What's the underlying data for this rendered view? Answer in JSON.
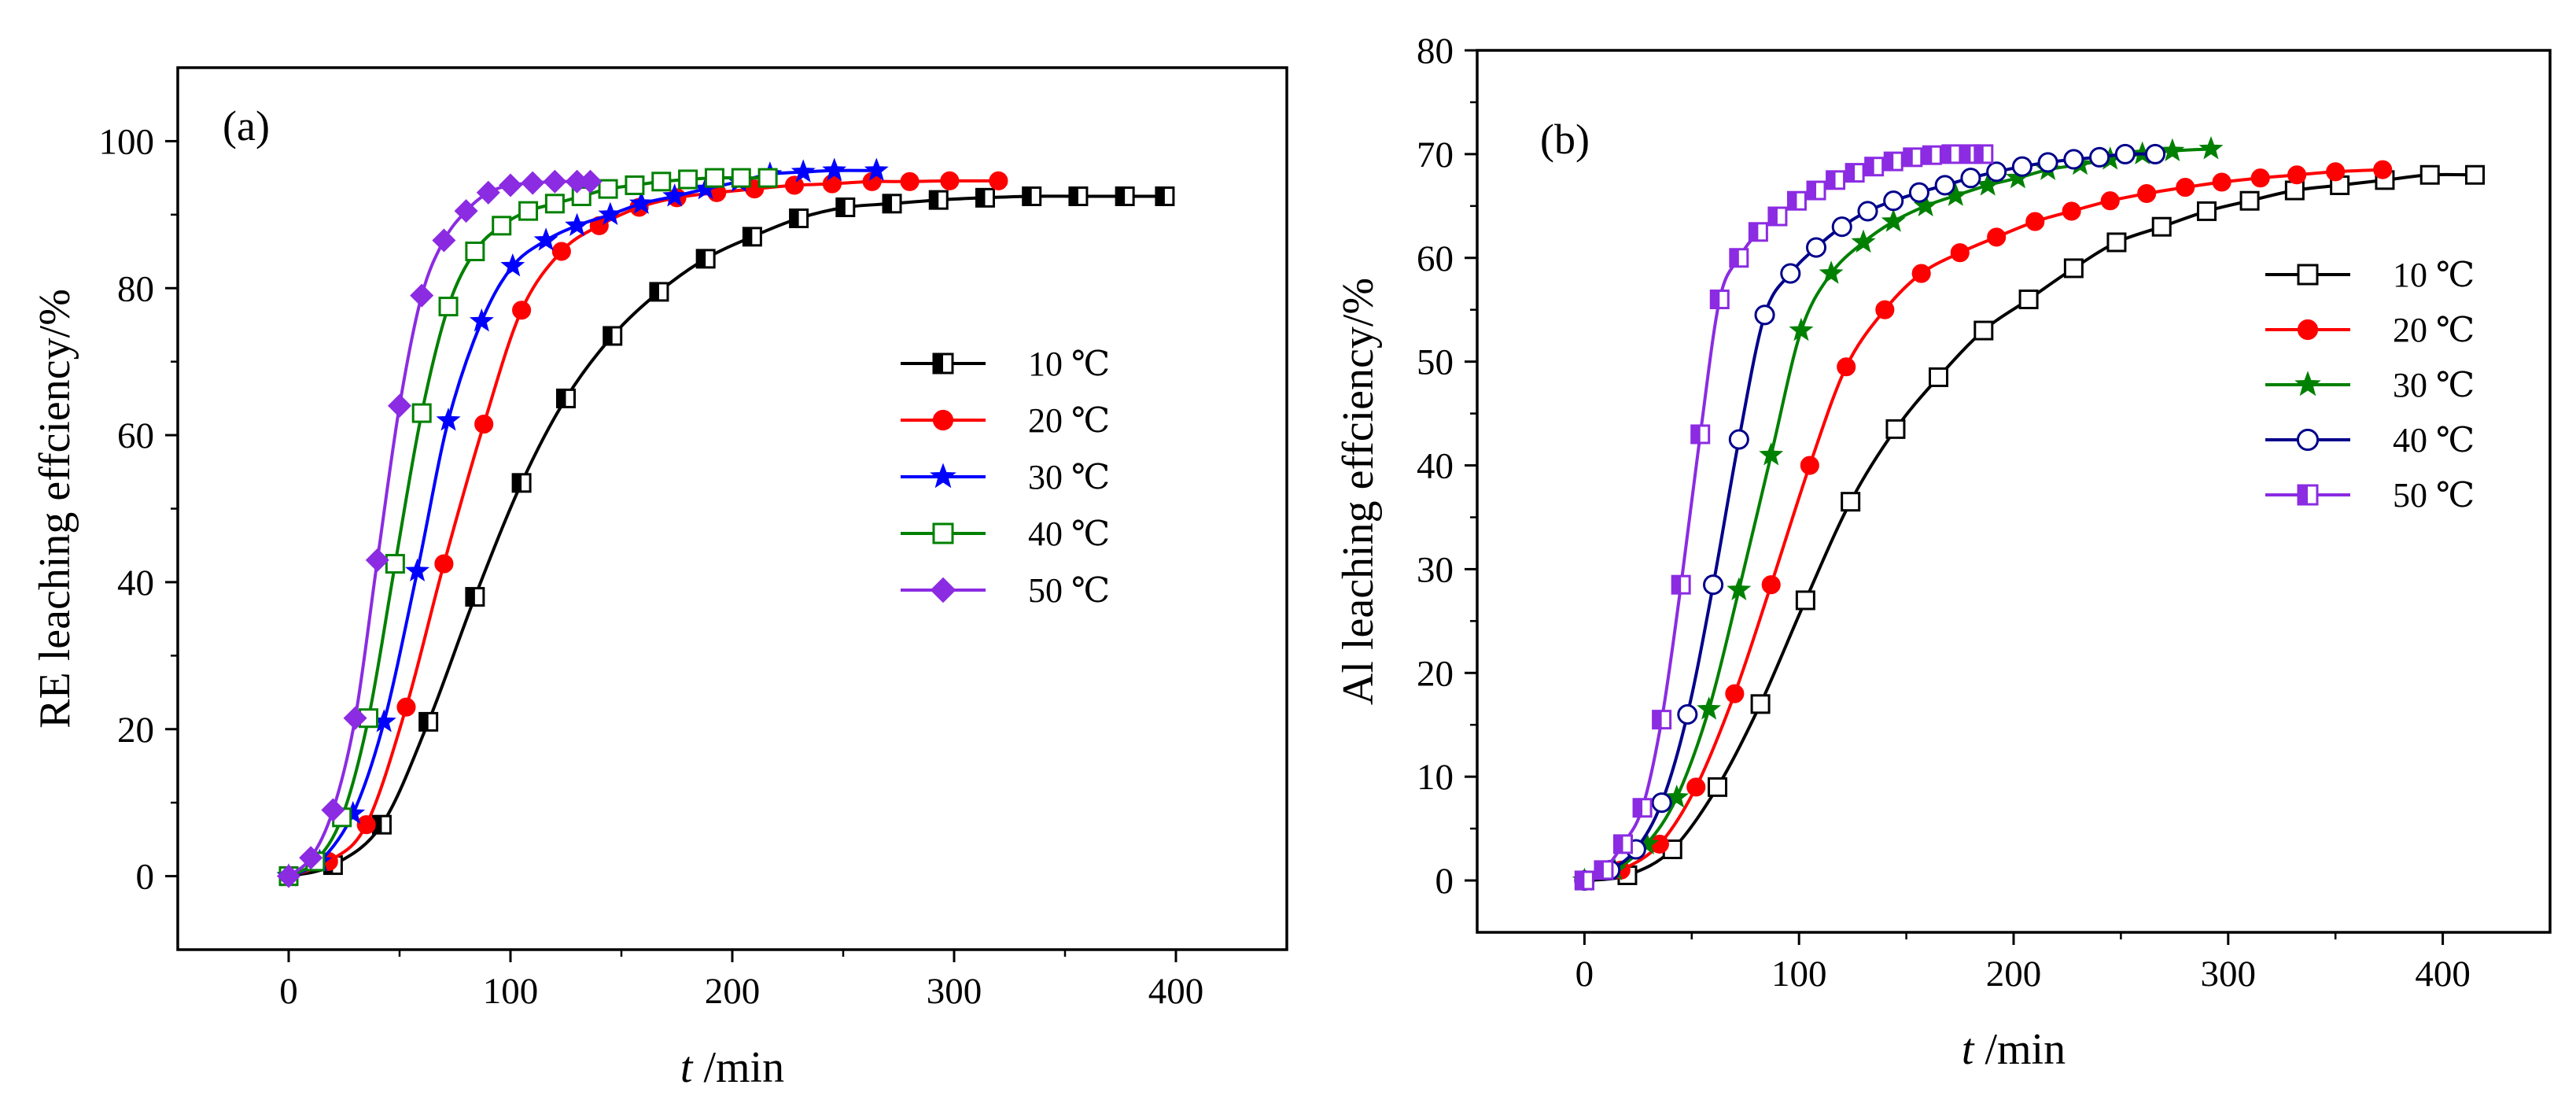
{
  "chart_data": [
    {
      "type": "line",
      "panel_label": "(a)",
      "xlabel": "t /min",
      "xlabel_var": "t",
      "xlabel_unit": " /min",
      "ylabel": "RE leaching effciency/%",
      "xlim": [
        -50,
        450
      ],
      "ylim": [
        -10,
        110
      ],
      "xticks": [
        0,
        100,
        200,
        300,
        400
      ],
      "yticks": [
        0,
        20,
        40,
        60,
        80,
        100
      ],
      "legend_position": "right",
      "series": [
        {
          "name": "10 ℃",
          "color": "#000000",
          "marker": "square-half",
          "x": [
            0,
            20,
            42,
            63,
            84,
            105,
            125,
            146,
            167,
            188,
            209,
            230,
            251,
            272,
            293,
            314,
            335,
            356,
            377,
            395
          ],
          "y": [
            0,
            1.5,
            7,
            21,
            38,
            53.5,
            65,
            73.5,
            79.5,
            84,
            87,
            89.5,
            91,
            91.5,
            92,
            92.3,
            92.5,
            92.5,
            92.5,
            92.5
          ]
        },
        {
          "name": "20 ℃",
          "color": "#ff0000",
          "marker": "circle",
          "x": [
            0,
            18,
            35,
            53,
            70,
            88,
            105,
            123,
            140,
            158,
            175,
            193,
            210,
            228,
            245,
            263,
            280,
            298,
            320
          ],
          "y": [
            0,
            2,
            7,
            23,
            42.5,
            61.5,
            77,
            85,
            88.5,
            91,
            92.3,
            93,
            93.5,
            94,
            94.2,
            94.5,
            94.5,
            94.6,
            94.6
          ]
        },
        {
          "name": "30 ℃",
          "color": "#0000ff",
          "marker": "star",
          "x": [
            0,
            14,
            29,
            43,
            58,
            72,
            87,
            101,
            116,
            130,
            145,
            159,
            174,
            188,
            203,
            217,
            232,
            246,
            265
          ],
          "y": [
            0,
            2,
            8.5,
            21,
            41.5,
            62,
            75.5,
            83,
            86.5,
            88.5,
            90,
            91.5,
            92.5,
            93.5,
            94.5,
            95.5,
            95.8,
            96,
            96
          ]
        },
        {
          "name": "40 ℃",
          "color": "#008000",
          "marker": "square-open",
          "x": [
            0,
            12,
            24,
            36,
            48,
            60,
            72,
            84,
            96,
            108,
            120,
            132,
            144,
            156,
            168,
            180,
            192,
            204,
            216
          ],
          "y": [
            0,
            2,
            8,
            21.5,
            42.5,
            63,
            77.5,
            85,
            88.5,
            90.5,
            91.5,
            92.5,
            93.5,
            94,
            94.5,
            94.8,
            95,
            95,
            95
          ]
        },
        {
          "name": "50 ℃",
          "color": "#8b2be2",
          "marker": "diamond",
          "x": [
            0,
            10,
            20,
            30,
            40,
            50,
            60,
            70,
            80,
            90,
            100,
            110,
            120,
            130,
            136
          ],
          "y": [
            0,
            2.5,
            9,
            21.5,
            43,
            64,
            79,
            86.5,
            90.5,
            93,
            94,
            94.3,
            94.5,
            94.5,
            94.5
          ]
        }
      ]
    },
    {
      "type": "line",
      "panel_label": "(b)",
      "xlabel": "t /min",
      "xlabel_var": "t",
      "xlabel_unit": " /min",
      "ylabel": "Al leaching effciency/%",
      "xlim": [
        -50,
        450
      ],
      "ylim": [
        -5,
        80
      ],
      "xticks": [
        0,
        100,
        200,
        300,
        400
      ],
      "yticks": [
        0,
        10,
        20,
        30,
        40,
        50,
        60,
        70,
        80
      ],
      "legend_position": "right",
      "series": [
        {
          "name": "10 ℃",
          "color": "#000000",
          "marker": "square-open",
          "x": [
            0,
            20,
            41,
            62,
            82,
            103,
            124,
            145,
            165,
            186,
            207,
            228,
            248,
            269,
            290,
            310,
            331,
            352,
            373,
            394,
            415
          ],
          "y": [
            0,
            0.5,
            3,
            9,
            17,
            27,
            36.5,
            43.5,
            48.5,
            53,
            56,
            59,
            61.5,
            63,
            64.5,
            65.5,
            66.5,
            67,
            67.5,
            68,
            68
          ]
        },
        {
          "name": "20 ℃",
          "color": "#ff0000",
          "marker": "circle",
          "x": [
            0,
            17,
            35,
            52,
            70,
            87,
            105,
            122,
            140,
            157,
            175,
            192,
            210,
            227,
            245,
            262,
            280,
            297,
            315,
            332,
            350,
            372
          ],
          "y": [
            0,
            1,
            3.5,
            9,
            18,
            28.5,
            40,
            49.5,
            55,
            58.5,
            60.5,
            62,
            63.5,
            64.5,
            65.5,
            66.2,
            66.8,
            67.3,
            67.7,
            68,
            68.3,
            68.5
          ]
        },
        {
          "name": "30 ℃",
          "color": "#008000",
          "marker": "star",
          "x": [
            0,
            14,
            29,
            43,
            58,
            72,
            87,
            101,
            115,
            130,
            144,
            159,
            173,
            188,
            202,
            216,
            231,
            245,
            260,
            274,
            292
          ],
          "y": [
            0,
            1,
            3.5,
            8,
            16.5,
            28,
            41,
            53,
            58.5,
            61.5,
            63.5,
            65,
            66,
            67,
            67.7,
            68.5,
            69,
            69.5,
            70,
            70.3,
            70.5
          ]
        },
        {
          "name": "40 ℃",
          "color": "#00008b",
          "marker": "circle-open",
          "x": [
            0,
            12,
            24,
            36,
            48,
            60,
            72,
            84,
            96,
            108,
            120,
            132,
            144,
            156,
            168,
            180,
            192,
            204,
            216,
            228,
            240,
            252,
            266
          ],
          "y": [
            0,
            1,
            3,
            7.5,
            16,
            28.5,
            42.5,
            54.5,
            58.5,
            61,
            63,
            64.5,
            65.5,
            66.3,
            67,
            67.7,
            68.3,
            68.8,
            69.2,
            69.5,
            69.7,
            70,
            70
          ]
        },
        {
          "name": "50 ℃",
          "color": "#8b2be2",
          "marker": "square-half",
          "x": [
            0,
            9,
            18,
            27,
            36,
            45,
            54,
            63,
            72,
            81,
            90,
            99,
            108,
            117,
            126,
            135,
            144,
            153,
            162,
            171,
            180,
            186
          ],
          "y": [
            0,
            1,
            3.5,
            7,
            15.5,
            28.5,
            43,
            56,
            60,
            62.5,
            64,
            65.5,
            66.5,
            67.5,
            68.2,
            68.8,
            69.3,
            69.7,
            69.9,
            70,
            70,
            70
          ]
        }
      ]
    }
  ]
}
